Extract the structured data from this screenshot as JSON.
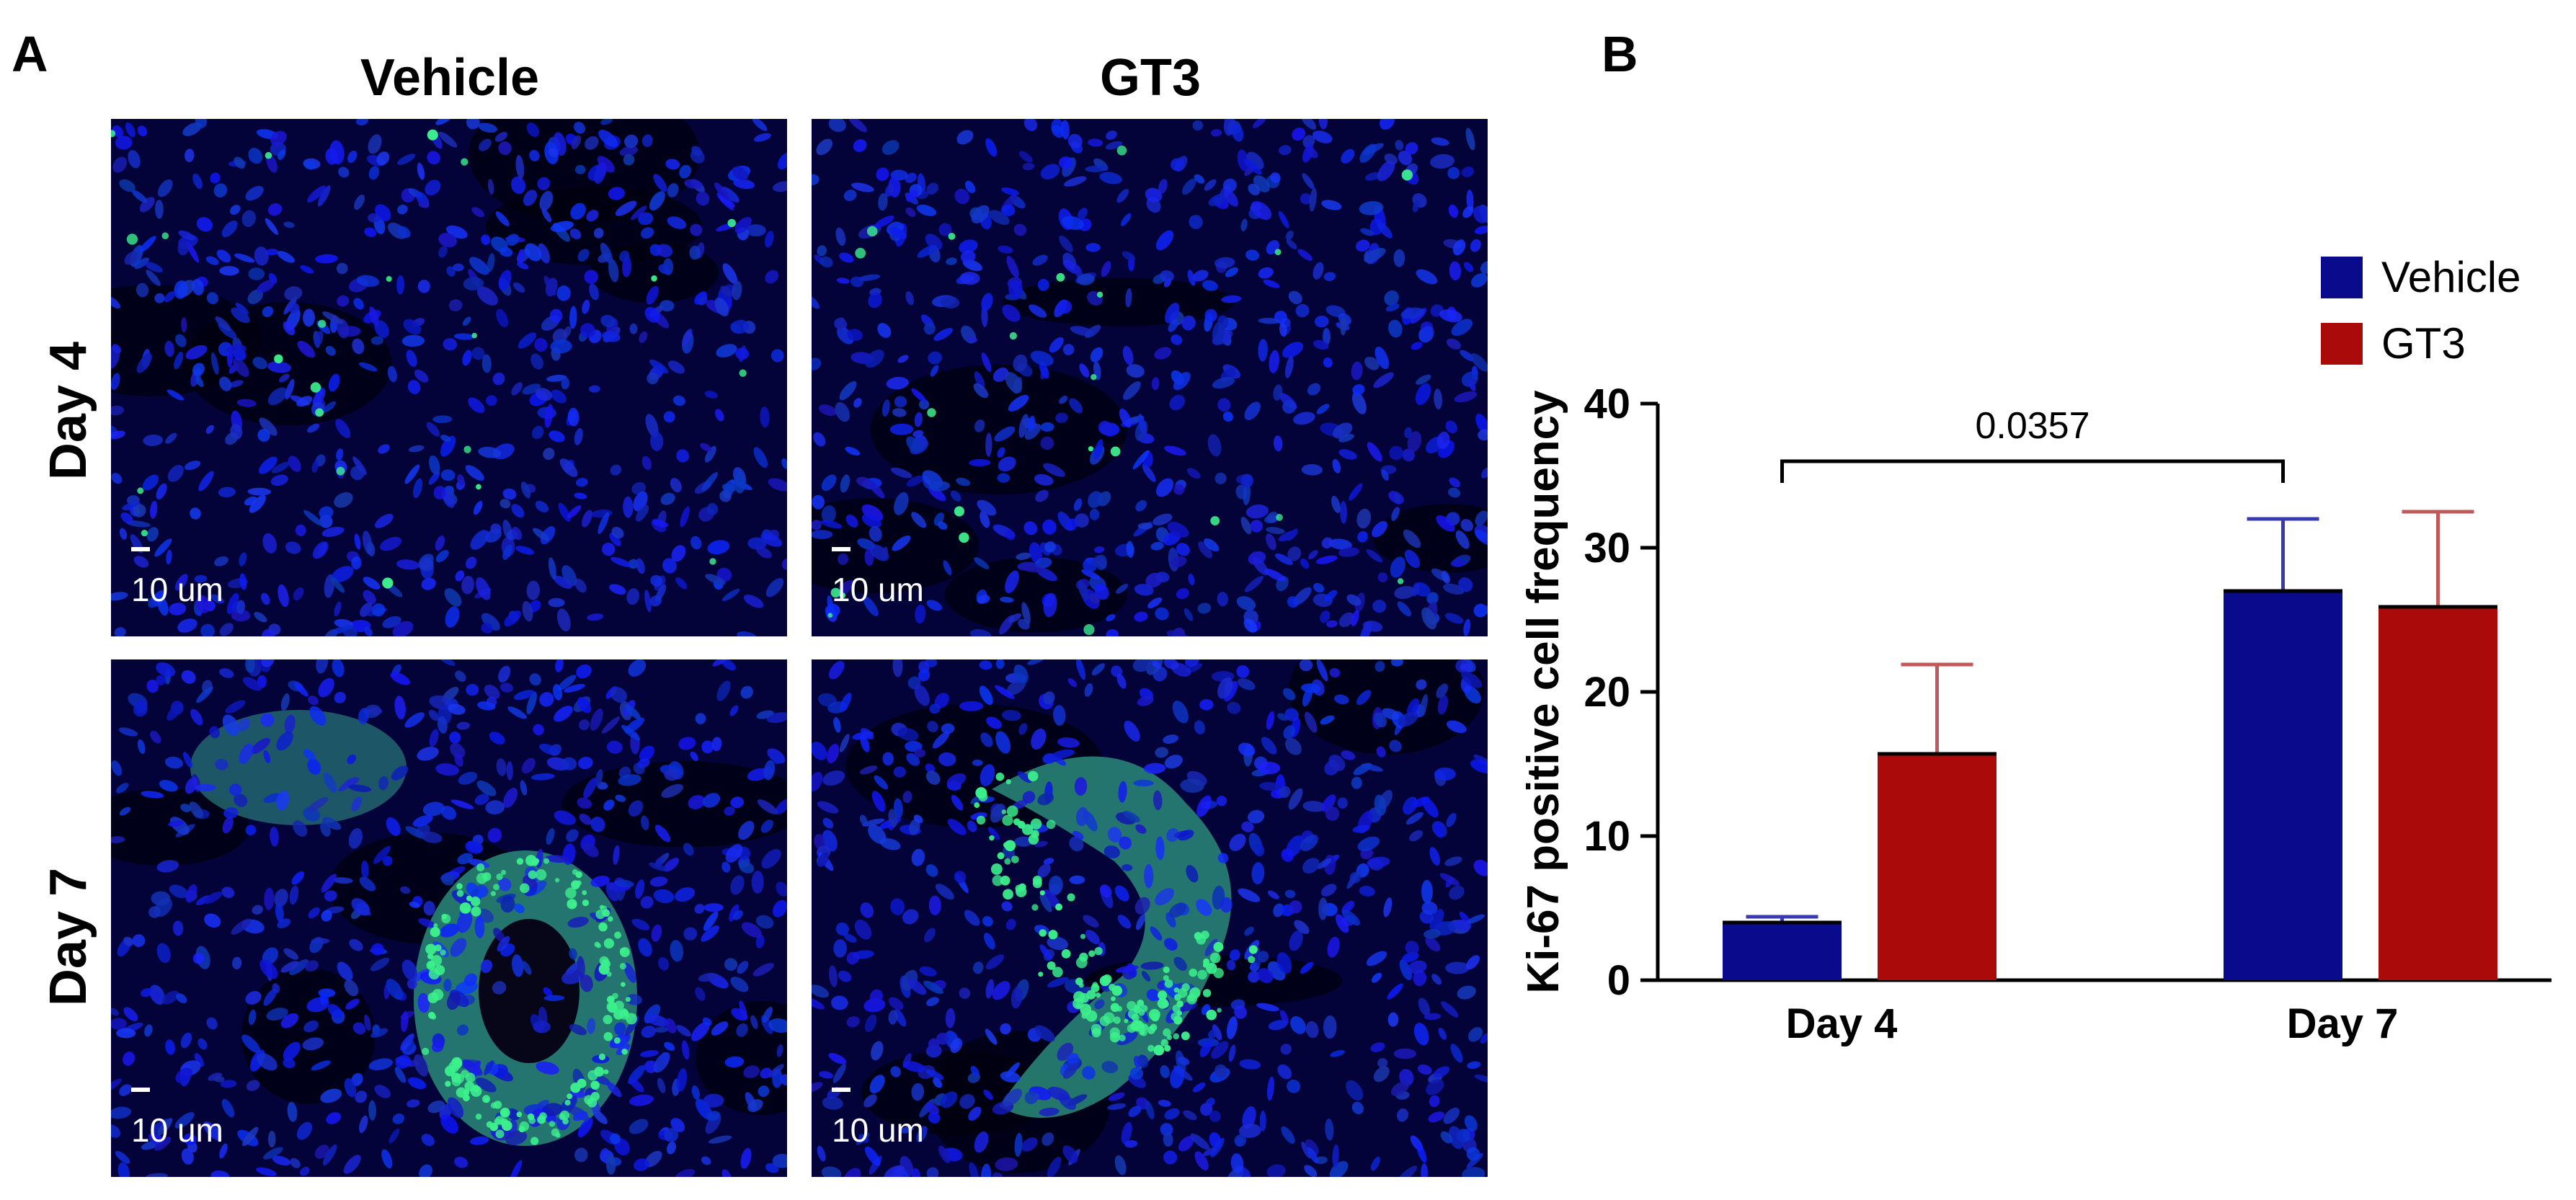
{
  "panels": {
    "a": "A",
    "b": "B"
  },
  "columns": [
    "Vehicle",
    "GT3"
  ],
  "rows": [
    "Day 4",
    "Day 7"
  ],
  "scale_bar_label": "10 um",
  "micrographs": [
    {
      "name": "micrograph-vehicle-day4",
      "stain": "DAPI/Ki-67"
    },
    {
      "name": "micrograph-gt3-day4",
      "stain": "DAPI/Ki-67"
    },
    {
      "name": "micrograph-vehicle-day7",
      "stain": "DAPI/Ki-67"
    },
    {
      "name": "micrograph-gt3-day7",
      "stain": "DAPI/Ki-67"
    }
  ],
  "colors": {
    "vehicle": "#0a0a8c",
    "vehicle_err": "#3a3ab0",
    "gt3": "#aa0a0a",
    "gt3_err": "#c05a5a",
    "nuclei": "#1428e6",
    "ki67": "#3cf08c",
    "bg": "#03033a"
  },
  "chart_data": {
    "type": "bar",
    "categories": [
      "Day 4",
      "Day 7"
    ],
    "series": [
      {
        "name": "Vehicle",
        "values": [
          4.0,
          27.0
        ],
        "errors": [
          0.4,
          5.0
        ]
      },
      {
        "name": "GT3",
        "values": [
          15.7,
          25.9
        ],
        "errors": [
          6.2,
          6.6
        ]
      }
    ],
    "ylabel": "Ki-67 positive cell frequency",
    "xlabel": "",
    "ylim": [
      0,
      40
    ],
    "yticks": [
      0,
      10,
      20,
      30,
      40
    ],
    "legend_position": "top-right",
    "annotation": {
      "text": "0.0357",
      "from": [
        "Day 4",
        "Vehicle"
      ],
      "to": [
        "Day 7",
        "Vehicle"
      ]
    }
  }
}
